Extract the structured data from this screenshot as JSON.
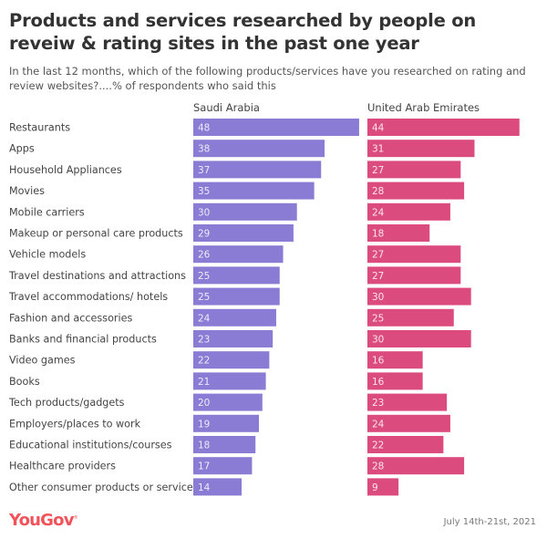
{
  "chart_data": {
    "type": "bar",
    "orientation": "horizontal",
    "title": "Products and services researched by people on reveiw & rating sites in the past one year",
    "subtitle": "In the last 12 months, which of the following products/services have you researched on rating and review websites?....% of respondents who said this",
    "categories": [
      "Restaurants",
      "Apps",
      "Household Appliances",
      "Movies",
      "Mobile carriers",
      "Makeup or personal care products",
      "Vehicle models",
      "Travel destinations and attractions",
      "Travel accommodations/ hotels",
      "Fashion and accessories",
      "Banks and financial products",
      "Video games",
      "Books",
      "Tech products/gadgets",
      "Employers/places to work",
      "Educational institutions/courses",
      "Healthcare providers",
      "Other consumer products or service"
    ],
    "series": [
      {
        "name": "Saudi Arabia",
        "color": "#8a7bd4",
        "values": [
          48,
          38,
          37,
          35,
          30,
          29,
          26,
          25,
          25,
          24,
          23,
          22,
          21,
          20,
          19,
          18,
          17,
          14
        ]
      },
      {
        "name": "United Arab Emirates",
        "color": "#dc4b7e",
        "values": [
          44,
          31,
          27,
          28,
          24,
          18,
          27,
          27,
          30,
          25,
          30,
          16,
          16,
          23,
          24,
          22,
          28,
          9
        ]
      }
    ],
    "xlabel": "",
    "ylabel": "",
    "xlim": [
      0,
      48
    ],
    "grid": false,
    "legend": "panel-headers-top",
    "data_labels": "inside-left"
  },
  "footer": {
    "brand": "YouGov",
    "brand_color": "#f0545a",
    "date": "July 14th-21st, 2021"
  }
}
